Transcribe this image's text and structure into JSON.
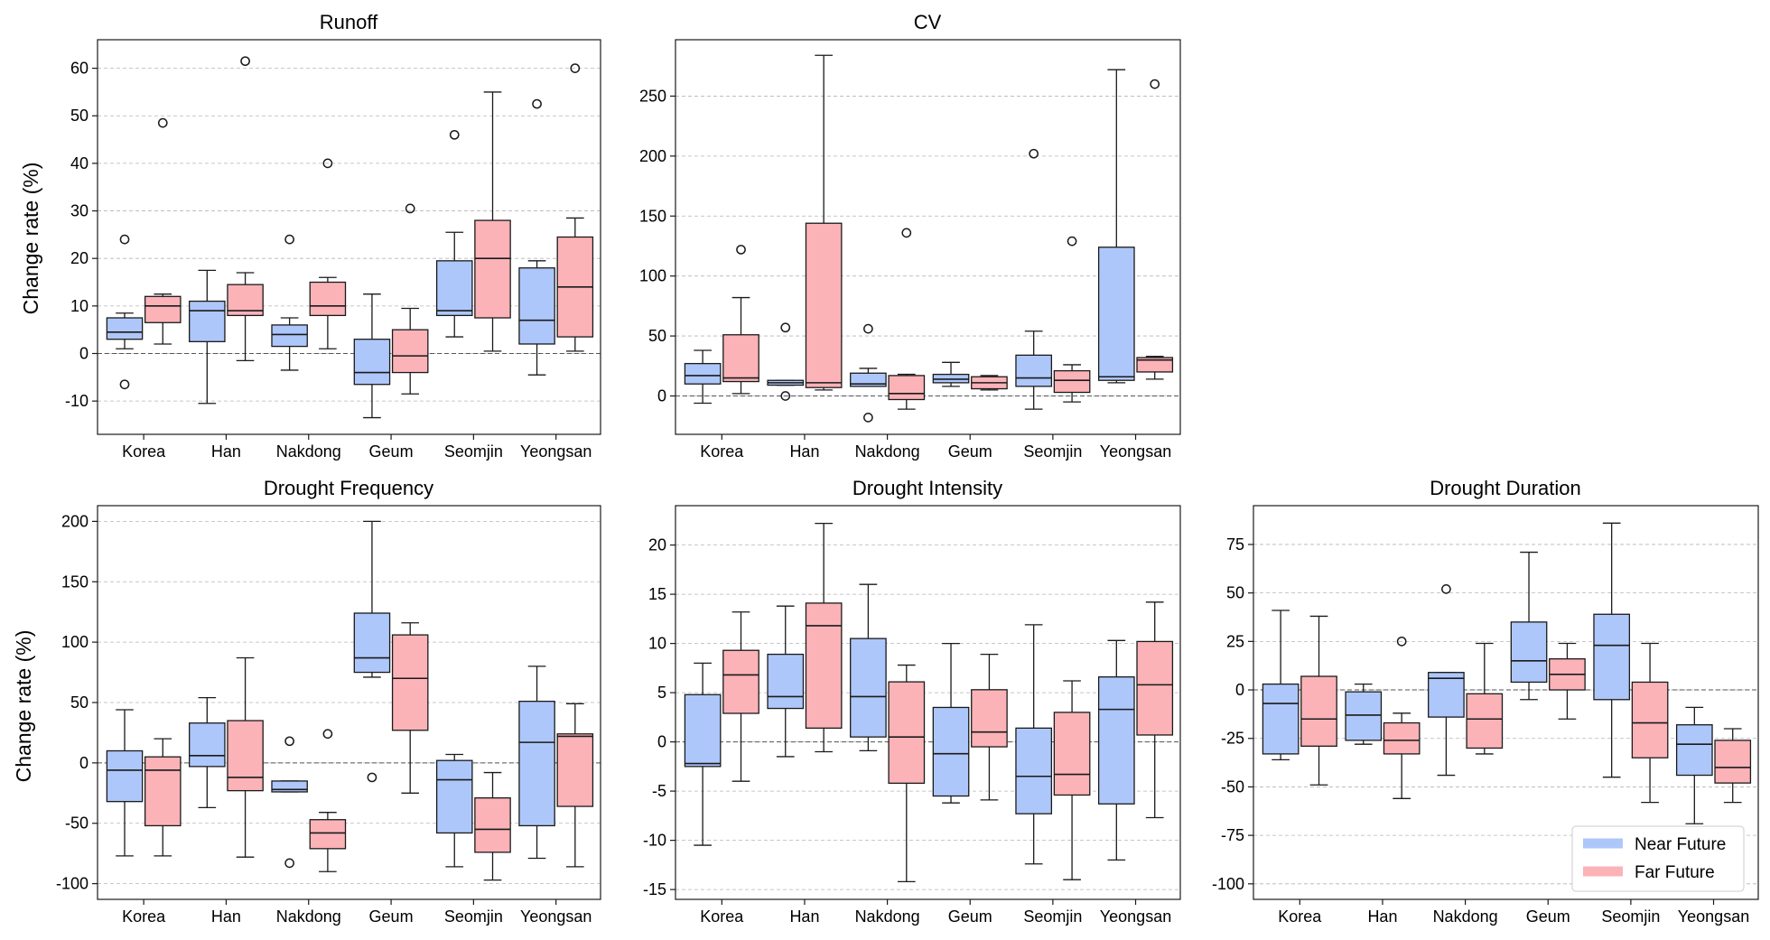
{
  "figure": {
    "ylabel": "Change rate (%)",
    "legend": [
      {
        "label": "Near Future",
        "color": "#aec7fa"
      },
      {
        "label": "Far Future",
        "color": "#fbb3b8"
      }
    ],
    "colors": {
      "near": "#aec7fa",
      "far": "#fbb3b8",
      "edge": "#1a1a1a",
      "grid": "#b5b5b5"
    }
  },
  "chart_data": [
    {
      "id": "runoff",
      "type": "box",
      "title": "Runoff",
      "categories": [
        "Korea",
        "Han",
        "Nakdong",
        "Geum",
        "Seomjin",
        "Yeongsan"
      ],
      "ylim": [
        -17,
        66
      ],
      "yticks": [
        -10,
        0,
        10,
        20,
        30,
        40,
        50,
        60
      ],
      "show_ylabel": true,
      "legend": false,
      "series": [
        {
          "name": "Near Future",
          "boxes": [
            {
              "whislo": 1,
              "q1": 3,
              "med": 4.5,
              "q3": 7.5,
              "whishi": 8.5,
              "fliers": [
                24,
                -6.5
              ]
            },
            {
              "whislo": -10.5,
              "q1": 2.5,
              "med": 9,
              "q3": 11,
              "whishi": 17.5,
              "fliers": []
            },
            {
              "whislo": -3.5,
              "q1": 1.5,
              "med": 4,
              "q3": 6,
              "whishi": 7.5,
              "fliers": [
                24
              ]
            },
            {
              "whislo": -13.5,
              "q1": -6.5,
              "med": -4,
              "q3": 3,
              "whishi": 12.5,
              "fliers": []
            },
            {
              "whislo": 3.5,
              "q1": 8,
              "med": 9,
              "q3": 19.5,
              "whishi": 25.5,
              "fliers": [
                46
              ]
            },
            {
              "whislo": -4.5,
              "q1": 2,
              "med": 7,
              "q3": 18,
              "whishi": 19.5,
              "fliers": [
                52.5
              ]
            }
          ]
        },
        {
          "name": "Far Future",
          "boxes": [
            {
              "whislo": 2,
              "q1": 6.5,
              "med": 10,
              "q3": 12,
              "whishi": 12.5,
              "fliers": [
                48.5
              ]
            },
            {
              "whislo": -1.5,
              "q1": 8,
              "med": 9,
              "q3": 14.5,
              "whishi": 17,
              "fliers": [
                61.5
              ]
            },
            {
              "whislo": 1,
              "q1": 8,
              "med": 10,
              "q3": 15,
              "whishi": 16,
              "fliers": [
                40
              ]
            },
            {
              "whislo": -8.5,
              "q1": -4,
              "med": -0.5,
              "q3": 5,
              "whishi": 9.5,
              "fliers": [
                30.5
              ]
            },
            {
              "whislo": 0.5,
              "q1": 7.5,
              "med": 20,
              "q3": 28,
              "whishi": 55,
              "fliers": []
            },
            {
              "whislo": 0.5,
              "q1": 3.5,
              "med": 14,
              "q3": 24.5,
              "whishi": 28.5,
              "fliers": [
                60
              ]
            }
          ]
        }
      ]
    },
    {
      "id": "cv",
      "type": "box",
      "title": "CV",
      "categories": [
        "Korea",
        "Han",
        "Nakdong",
        "Geum",
        "Seomjin",
        "Yeongsan"
      ],
      "ylim": [
        -32,
        297
      ],
      "yticks": [
        0,
        50,
        100,
        150,
        200,
        250
      ],
      "show_ylabel": false,
      "legend": false,
      "series": [
        {
          "name": "Near Future",
          "boxes": [
            {
              "whislo": -6,
              "q1": 10,
              "med": 17,
              "q3": 27,
              "whishi": 38,
              "fliers": []
            },
            {
              "whislo": 9,
              "q1": 9,
              "med": 11,
              "q3": 13,
              "whishi": 13,
              "fliers": [
                57,
                0
              ]
            },
            {
              "whislo": 8,
              "q1": 8,
              "med": 10,
              "q3": 19,
              "whishi": 23,
              "fliers": [
                56,
                -18
              ]
            },
            {
              "whislo": 8,
              "q1": 11,
              "med": 14,
              "q3": 18,
              "whishi": 28,
              "fliers": []
            },
            {
              "whislo": -11,
              "q1": 8,
              "med": 15,
              "q3": 34,
              "whishi": 54,
              "fliers": [
                202
              ]
            },
            {
              "whislo": 11,
              "q1": 13,
              "med": 16,
              "q3": 124,
              "whishi": 272,
              "fliers": []
            }
          ]
        },
        {
          "name": "Far Future",
          "boxes": [
            {
              "whislo": 2,
              "q1": 12,
              "med": 15,
              "q3": 51,
              "whishi": 82,
              "fliers": [
                122
              ]
            },
            {
              "whislo": 5,
              "q1": 7,
              "med": 11,
              "q3": 144,
              "whishi": 284,
              "fliers": []
            },
            {
              "whislo": -11,
              "q1": -3,
              "med": 2,
              "q3": 17,
              "whishi": 18,
              "fliers": [
                136
              ]
            },
            {
              "whislo": 5,
              "q1": 6,
              "med": 11,
              "q3": 16,
              "whishi": 17,
              "fliers": []
            },
            {
              "whislo": -5,
              "q1": 3,
              "med": 13,
              "q3": 21,
              "whishi": 26,
              "fliers": [
                129
              ]
            },
            {
              "whislo": 14,
              "q1": 20,
              "med": 30,
              "q3": 32,
              "whishi": 33,
              "fliers": [
                260
              ]
            }
          ]
        }
      ]
    },
    {
      "id": "drought_frequency",
      "type": "box",
      "title": "Drought Frequency",
      "categories": [
        "Korea",
        "Han",
        "Nakdong",
        "Geum",
        "Seomjin",
        "Yeongsan"
      ],
      "ylim": [
        -113,
        213
      ],
      "yticks": [
        -100,
        -50,
        0,
        50,
        100,
        150,
        200
      ],
      "show_ylabel": true,
      "legend": false,
      "series": [
        {
          "name": "Near Future",
          "boxes": [
            {
              "whislo": -77,
              "q1": -32,
              "med": -6,
              "q3": 10,
              "whishi": 44,
              "fliers": []
            },
            {
              "whislo": -37,
              "q1": -3,
              "med": 6,
              "q3": 33,
              "whishi": 54,
              "fliers": []
            },
            {
              "whislo": -24,
              "q1": -24,
              "med": -22,
              "q3": -15,
              "whishi": -15,
              "fliers": [
                18,
                -83
              ]
            },
            {
              "whislo": 71,
              "q1": 75,
              "med": 87,
              "q3": 124,
              "whishi": 200,
              "fliers": [
                -12
              ]
            },
            {
              "whislo": -86,
              "q1": -58,
              "med": -14,
              "q3": 2,
              "whishi": 7,
              "fliers": []
            },
            {
              "whislo": -79,
              "q1": -52,
              "med": 17,
              "q3": 51,
              "whishi": 80,
              "fliers": []
            }
          ]
        },
        {
          "name": "Far Future",
          "boxes": [
            {
              "whislo": -77,
              "q1": -52,
              "med": -6,
              "q3": 5,
              "whishi": 20,
              "fliers": []
            },
            {
              "whislo": -78,
              "q1": -23,
              "med": -12,
              "q3": 35,
              "whishi": 87,
              "fliers": []
            },
            {
              "whislo": -90,
              "q1": -71,
              "med": -58,
              "q3": -47,
              "whishi": -41,
              "fliers": [
                24
              ]
            },
            {
              "whislo": -25,
              "q1": 27,
              "med": 70,
              "q3": 106,
              "whishi": 116,
              "fliers": []
            },
            {
              "whislo": -97,
              "q1": -74,
              "med": -55,
              "q3": -29,
              "whishi": -8,
              "fliers": []
            },
            {
              "whislo": -86,
              "q1": -36,
              "med": 22,
              "q3": 24,
              "whishi": 49,
              "fliers": []
            }
          ]
        }
      ]
    },
    {
      "id": "drought_intensity",
      "type": "box",
      "title": "Drought Intensity",
      "categories": [
        "Korea",
        "Han",
        "Nakdong",
        "Geum",
        "Seomjin",
        "Yeongsan"
      ],
      "ylim": [
        -16,
        24
      ],
      "yticks": [
        -15,
        -10,
        -5,
        0,
        5,
        10,
        15,
        20
      ],
      "show_ylabel": false,
      "legend": false,
      "series": [
        {
          "name": "Near Future",
          "boxes": [
            {
              "whislo": -10.5,
              "q1": -2.5,
              "med": -2.2,
              "q3": 4.8,
              "whishi": 8,
              "fliers": []
            },
            {
              "whislo": -1.5,
              "q1": 3.4,
              "med": 4.6,
              "q3": 8.9,
              "whishi": 13.8,
              "fliers": []
            },
            {
              "whislo": -0.9,
              "q1": 0.5,
              "med": 4.6,
              "q3": 10.5,
              "whishi": 16,
              "fliers": []
            },
            {
              "whislo": -6.2,
              "q1": -5.5,
              "med": -1.2,
              "q3": 3.5,
              "whishi": 10,
              "fliers": []
            },
            {
              "whislo": -12.4,
              "q1": -7.3,
              "med": -3.5,
              "q3": 1.4,
              "whishi": 11.9,
              "fliers": []
            },
            {
              "whislo": -12,
              "q1": -6.3,
              "med": 3.3,
              "q3": 6.6,
              "whishi": 10.3,
              "fliers": []
            }
          ]
        },
        {
          "name": "Far Future",
          "boxes": [
            {
              "whislo": -4,
              "q1": 2.9,
              "med": 6.8,
              "q3": 9.3,
              "whishi": 13.2,
              "fliers": []
            },
            {
              "whislo": -1,
              "q1": 1.4,
              "med": 11.8,
              "q3": 14.1,
              "whishi": 22.2,
              "fliers": []
            },
            {
              "whislo": -14.2,
              "q1": -4.2,
              "med": 0.5,
              "q3": 6.1,
              "whishi": 7.8,
              "fliers": []
            },
            {
              "whislo": -5.9,
              "q1": -0.5,
              "med": 1,
              "q3": 5.3,
              "whishi": 8.9,
              "fliers": []
            },
            {
              "whislo": -14,
              "q1": -5.4,
              "med": -3.3,
              "q3": 3,
              "whishi": 6.2,
              "fliers": []
            },
            {
              "whislo": -7.7,
              "q1": 0.7,
              "med": 5.8,
              "q3": 10.2,
              "whishi": 14.2,
              "fliers": []
            }
          ]
        }
      ]
    },
    {
      "id": "drought_duration",
      "type": "box",
      "title": "Drought Duration",
      "categories": [
        "Korea",
        "Han",
        "Nakdong",
        "Geum",
        "Seomjin",
        "Yeongsan"
      ],
      "ylim": [
        -108,
        95
      ],
      "yticks": [
        -100,
        -75,
        -50,
        -25,
        0,
        25,
        50,
        75
      ],
      "show_ylabel": false,
      "legend": true,
      "series": [
        {
          "name": "Near Future",
          "boxes": [
            {
              "whislo": -36,
              "q1": -33,
              "med": -7,
              "q3": 3,
              "whishi": 41,
              "fliers": []
            },
            {
              "whislo": -28,
              "q1": -26,
              "med": -13,
              "q3": -1,
              "whishi": 3,
              "fliers": []
            },
            {
              "whislo": -44,
              "q1": -14,
              "med": 6,
              "q3": 9,
              "whishi": 9,
              "fliers": [
                52
              ]
            },
            {
              "whislo": -5,
              "q1": 4,
              "med": 15,
              "q3": 35,
              "whishi": 71,
              "fliers": []
            },
            {
              "whislo": -45,
              "q1": -5,
              "med": 23,
              "q3": 39,
              "whishi": 86,
              "fliers": []
            },
            {
              "whislo": -69,
              "q1": -44,
              "med": -28,
              "q3": -18,
              "whishi": -9,
              "fliers": []
            }
          ]
        },
        {
          "name": "Far Future",
          "boxes": [
            {
              "whislo": -49,
              "q1": -29,
              "med": -15,
              "q3": 7,
              "whishi": 38,
              "fliers": []
            },
            {
              "whislo": -56,
              "q1": -33,
              "med": -26,
              "q3": -17,
              "whishi": -12,
              "fliers": [
                25
              ]
            },
            {
              "whislo": -33,
              "q1": -30,
              "med": -15,
              "q3": -2,
              "whishi": 24,
              "fliers": []
            },
            {
              "whislo": -15,
              "q1": 0,
              "med": 8,
              "q3": 16,
              "whishi": 24,
              "fliers": []
            },
            {
              "whislo": -58,
              "q1": -35,
              "med": -17,
              "q3": 4,
              "whishi": 24,
              "fliers": []
            },
            {
              "whislo": -58,
              "q1": -48,
              "med": -40,
              "q3": -26,
              "whishi": -20,
              "fliers": []
            }
          ]
        }
      ]
    }
  ]
}
